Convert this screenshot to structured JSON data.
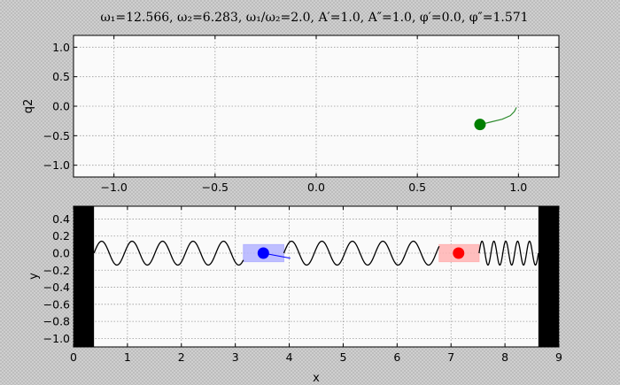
{
  "chart_data": [
    {
      "type": "scatter",
      "title": "ω₁=12.566, ω₂=6.283, ω₁/ω₂=2.0, A′=1.0, A″=1.0, φ′=0.0, φ″=1.571",
      "xlabel": "",
      "ylabel": "q2",
      "xlim": [
        -1.2,
        1.2
      ],
      "ylim": [
        -1.2,
        1.2
      ],
      "xticks": [
        "−1.0",
        "−0.5",
        "0.0",
        "0.5",
        "1.0"
      ],
      "xtick_values": [
        -1.0,
        -0.5,
        0.0,
        0.5,
        1.0
      ],
      "yticks": [
        "1.0",
        "0.5",
        "0.0",
        "−0.5",
        "−1.0"
      ],
      "ytick_values": [
        1.0,
        0.5,
        0.0,
        -0.5,
        -1.0
      ],
      "grid": true,
      "point": {
        "x": 0.81,
        "y": -0.31,
        "color": "#007f00"
      },
      "trail": [
        [
          0.81,
          -0.31
        ],
        [
          0.86,
          -0.27
        ],
        [
          0.92,
          -0.22
        ],
        [
          0.96,
          -0.16
        ],
        [
          0.98,
          -0.09
        ],
        [
          0.99,
          -0.02
        ]
      ],
      "trail_color": "#2e8b2e"
    },
    {
      "type": "line",
      "title": "",
      "xlabel": "x",
      "ylabel": "y",
      "xlim": [
        0,
        9
      ],
      "ylim": [
        -1.1,
        0.55
      ],
      "xticks": [
        "0",
        "1",
        "2",
        "3",
        "4",
        "5",
        "6",
        "7",
        "8",
        "9"
      ],
      "xtick_values": [
        0,
        1,
        2,
        3,
        4,
        5,
        6,
        7,
        8,
        9
      ],
      "yticks": [
        "0.4",
        "0.2",
        "0.0",
        "−0.2",
        "−0.4",
        "−0.6",
        "−0.8",
        "−1.0"
      ],
      "ytick_values": [
        0.4,
        0.2,
        0.0,
        -0.2,
        -0.4,
        -0.6,
        -0.8,
        -1.0
      ],
      "grid": true,
      "walls": [
        {
          "x0": 0,
          "x1": 0.38,
          "color": "#000000"
        },
        {
          "x0": 8.62,
          "x1": 9,
          "color": "#000000"
        }
      ],
      "spring_amplitude": 0.14,
      "springs": [
        {
          "x0": 0.38,
          "x1": 3.15,
          "wavelength": 0.565
        },
        {
          "x0": 3.9,
          "x1": 6.78,
          "wavelength": 0.565
        },
        {
          "x0": 7.52,
          "x1": 8.62,
          "wavelength": 0.22
        }
      ],
      "masses": [
        {
          "x": 3.52,
          "box_x0": 3.15,
          "box_x1": 3.9,
          "box_y0": -0.1,
          "box_y1": 0.1,
          "color": "#0000ff",
          "box_color": "#b3b3ff",
          "tail_dx": 0.5,
          "tail_dy": -0.06
        },
        {
          "x": 7.14,
          "box_x0": 6.78,
          "box_x1": 7.52,
          "box_y0": -0.1,
          "box_y1": 0.1,
          "color": "#ff0000",
          "box_color": "#ffb3b3"
        }
      ]
    }
  ]
}
